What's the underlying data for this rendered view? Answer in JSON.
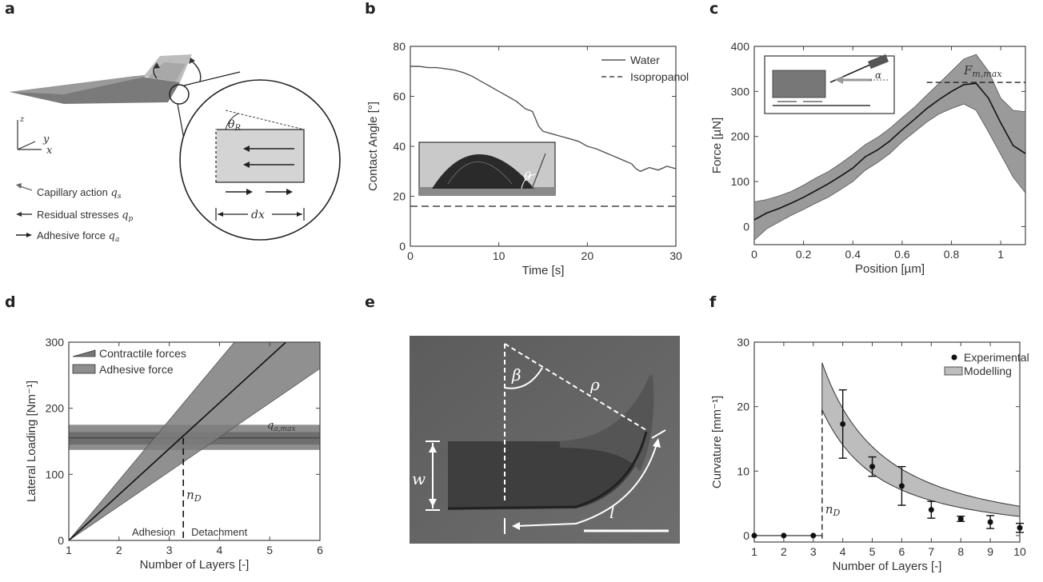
{
  "panels": {
    "a": {
      "label": "a",
      "axes": {
        "z": "z",
        "y": "y",
        "x": "x"
      },
      "theta": "θ",
      "theta_sub": "R",
      "dx": "dx",
      "legend": [
        {
          "text": "Capillary action ",
          "sym": "q",
          "sub": "s"
        },
        {
          "text": "Residual stresses ",
          "sym": "q",
          "sub": "p"
        },
        {
          "text": "Adhesive force ",
          "sym": "q",
          "sub": "a"
        }
      ]
    },
    "b": {
      "label": "b",
      "theta": "θ"
    },
    "c": {
      "label": "c",
      "alpha": "α",
      "fmax_sym": "F",
      "fmax_sub": "m,max"
    },
    "d": {
      "label": "d",
      "qmax_sym": "q",
      "qmax_sub": "a,max",
      "nd_sym": "n",
      "nd_sub": "D",
      "adhesion": "Adhesion",
      "detachment": "Detachment"
    },
    "e": {
      "label": "e",
      "beta": "β",
      "rho": "ρ",
      "w": "w",
      "l": "l"
    },
    "f": {
      "label": "f",
      "nd_sym": "n",
      "nd_sub": "D"
    }
  },
  "chart_data": [
    {
      "id": "b",
      "type": "line",
      "xlabel": "Time [s]",
      "ylabel": "Contact Angle [°]",
      "xlim": [
        0,
        30
      ],
      "ylim": [
        0,
        80
      ],
      "xticks": [
        0,
        10,
        20,
        30
      ],
      "yticks": [
        0,
        20,
        40,
        60,
        80
      ],
      "legend_position": "top-right",
      "series": [
        {
          "name": "Water",
          "style": "solid",
          "x": [
            0,
            1,
            2,
            3,
            4,
            5,
            6,
            7,
            8,
            9,
            10,
            11,
            12,
            13,
            13.8,
            14.5,
            15,
            16,
            17,
            18,
            19,
            20,
            21,
            22,
            23,
            24,
            25,
            25.5,
            26,
            27,
            28,
            29,
            30
          ],
          "y": [
            72,
            72,
            71.5,
            71.5,
            71,
            70.5,
            69.5,
            68,
            66,
            64,
            62,
            60,
            58,
            55,
            54,
            48,
            46,
            45,
            44,
            43,
            42,
            40,
            39,
            37.5,
            36,
            34.5,
            33,
            31,
            30,
            31.5,
            30.5,
            32,
            31
          ]
        },
        {
          "name": "Isopropanol",
          "style": "dashed",
          "x": [
            0,
            30
          ],
          "y": [
            16,
            16
          ]
        }
      ]
    },
    {
      "id": "c",
      "type": "line",
      "xlabel": "Position [µm]",
      "ylabel": "Force [µN]",
      "xlim": [
        0,
        1.1
      ],
      "ylim": [
        -40,
        400
      ],
      "xticks": [
        0,
        0.2,
        0.4,
        0.6,
        0.8,
        1
      ],
      "yticks": [
        0,
        100,
        200,
        300,
        400
      ],
      "fmax_value": 320,
      "series": [
        {
          "name": "mean",
          "x": [
            0,
            0.05,
            0.1,
            0.15,
            0.2,
            0.25,
            0.3,
            0.35,
            0.4,
            0.45,
            0.5,
            0.55,
            0.6,
            0.65,
            0.7,
            0.75,
            0.8,
            0.85,
            0.9,
            0.95,
            1.0,
            1.05,
            1.1
          ],
          "y": [
            15,
            30,
            40,
            52,
            65,
            80,
            95,
            112,
            130,
            155,
            170,
            190,
            215,
            238,
            262,
            282,
            300,
            315,
            318,
            285,
            230,
            180,
            162
          ]
        },
        {
          "name": "upper",
          "x": [
            0,
            0.05,
            0.1,
            0.15,
            0.2,
            0.25,
            0.3,
            0.35,
            0.4,
            0.45,
            0.5,
            0.55,
            0.6,
            0.65,
            0.7,
            0.75,
            0.8,
            0.85,
            0.9,
            0.95,
            1.0,
            1.05,
            1.1
          ],
          "y": [
            55,
            60,
            68,
            78,
            92,
            108,
            122,
            140,
            160,
            182,
            198,
            218,
            242,
            265,
            292,
            318,
            345,
            372,
            382,
            345,
            285,
            258,
            255
          ]
        },
        {
          "name": "lower",
          "x": [
            0,
            0.05,
            0.1,
            0.15,
            0.2,
            0.25,
            0.3,
            0.35,
            0.4,
            0.45,
            0.5,
            0.55,
            0.6,
            0.65,
            0.7,
            0.75,
            0.8,
            0.85,
            0.9,
            0.95,
            1.0,
            1.05,
            1.1
          ],
          "y": [
            -30,
            -5,
            10,
            25,
            38,
            52,
            65,
            82,
            100,
            125,
            142,
            162,
            188,
            210,
            232,
            250,
            262,
            272,
            258,
            210,
            160,
            110,
            75
          ]
        }
      ]
    },
    {
      "id": "d",
      "type": "line",
      "xlabel": "Number of Layers [-]",
      "ylabel": "Lateral Loading [Nm⁻¹]",
      "xlim": [
        1,
        6
      ],
      "ylim": [
        0,
        300
      ],
      "xticks": [
        1,
        2,
        3,
        4,
        5,
        6
      ],
      "yticks": [
        0,
        100,
        200,
        300
      ],
      "legend_position": "top-left",
      "legend": [
        {
          "name": "Contractile forces"
        },
        {
          "name": "Adhesive force"
        }
      ],
      "contractile": {
        "slope_center": 69.4,
        "slope_upper": 91,
        "slope_lower": 52
      },
      "adhesive": {
        "center": 155,
        "lower": 137,
        "upper": 175,
        "inner_lower": 145,
        "inner_upper": 164
      },
      "nd_x": 3.28
    },
    {
      "id": "f",
      "type": "scatter",
      "xlabel": "Number of Layers [-]",
      "ylabel": "Curvature [mm⁻¹]",
      "xlim": [
        1,
        10
      ],
      "ylim": [
        -1,
        30
      ],
      "xticks": [
        1,
        2,
        3,
        4,
        5,
        6,
        7,
        8,
        9,
        10
      ],
      "yticks": [
        0,
        10,
        20,
        30
      ],
      "legend_position": "top-right",
      "legend": [
        {
          "name": "Experimental"
        },
        {
          "name": "Modelling"
        }
      ],
      "experimental": [
        {
          "x": 1,
          "y": 0,
          "err": 0
        },
        {
          "x": 2,
          "y": 0,
          "err": 0
        },
        {
          "x": 3,
          "y": 0,
          "err": 0
        },
        {
          "x": 4,
          "y": 17.3,
          "err": 5.3
        },
        {
          "x": 5,
          "y": 10.7,
          "err": 1.5
        },
        {
          "x": 6,
          "y": 7.7,
          "err": 3.0
        },
        {
          "x": 7,
          "y": 4.0,
          "err": 1.3
        },
        {
          "x": 8,
          "y": 2.6,
          "err": 0.4
        },
        {
          "x": 9,
          "y": 2.1,
          "err": 1.0
        },
        {
          "x": 10,
          "y": 1.2,
          "err": 0.7
        }
      ],
      "model_upper": {
        "x": [
          3.3,
          4,
          5,
          6,
          7,
          8,
          9,
          10
        ],
        "y": [
          26.8,
          19.5,
          13.2,
          9.4,
          6.9,
          5.1,
          3.8,
          2.9
        ]
      },
      "model_lower": {
        "x": [
          3.3,
          4,
          5,
          6,
          7,
          8,
          9,
          10
        ],
        "y": [
          19.5,
          14.3,
          9.5,
          6.7,
          4.8,
          3.5,
          2.6,
          1.9
        ]
      },
      "nd_x": 3.3
    }
  ]
}
